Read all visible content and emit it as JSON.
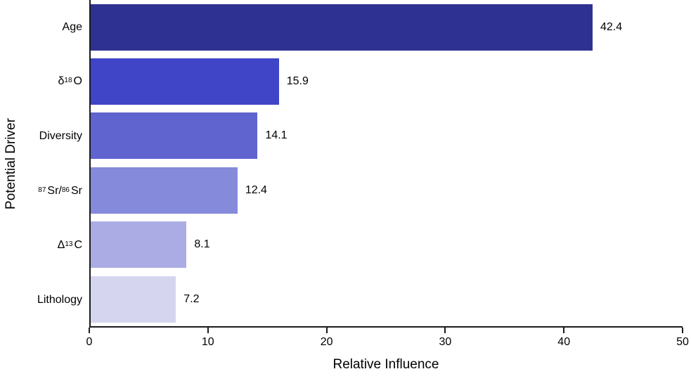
{
  "chart_data": {
    "type": "bar",
    "orientation": "horizontal",
    "title": "",
    "xlabel": "Relative Influence",
    "ylabel": "Potential Driver",
    "xlim": [
      0,
      50
    ],
    "xticks": [
      "0",
      "10",
      "20",
      "30",
      "40",
      "50"
    ],
    "xtick_values": [
      0,
      10,
      20,
      30,
      40,
      50
    ],
    "grid": false,
    "legend": false,
    "categories": [
      "Age",
      "δ¹⁸O",
      "Diversity",
      "⁸⁷Sr/ ⁸⁶Sr",
      "Δ¹³C",
      "Lithology"
    ],
    "category_segments": [
      [
        {
          "t": "Age"
        }
      ],
      [
        {
          "t": "δ"
        },
        {
          "s": "18"
        },
        {
          "t": "O"
        }
      ],
      [
        {
          "t": "Diversity"
        }
      ],
      [
        {
          "s": "87"
        },
        {
          "t": "Sr/ "
        },
        {
          "s": "86"
        },
        {
          "t": "Sr"
        }
      ],
      [
        {
          "t": "Δ"
        },
        {
          "s": "13"
        },
        {
          "t": "C"
        }
      ],
      [
        {
          "t": "Lithology"
        }
      ]
    ],
    "values": [
      42.4,
      15.9,
      14.1,
      12.4,
      8.1,
      7.2
    ],
    "value_labels": [
      "42.4",
      "15.9",
      "14.1",
      "12.4",
      "8.1",
      "7.2"
    ],
    "bar_colors": [
      "#2F3192",
      "#4045C7",
      "#5F64CE",
      "#858ADB",
      "#ABACE4",
      "#D5D5EF"
    ],
    "axis_color": "#1b1b1b",
    "text_color": "#000000",
    "background": "#FFFFFF"
  }
}
